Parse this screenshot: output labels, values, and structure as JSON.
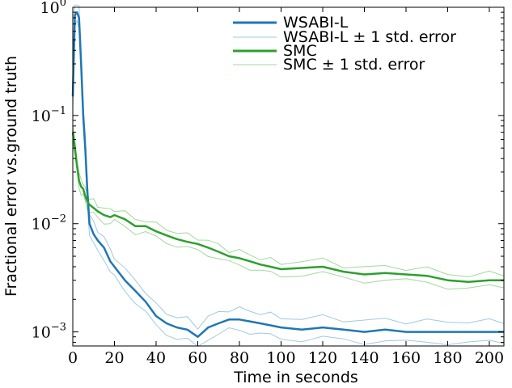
{
  "chart_data": {
    "type": "line",
    "title": "",
    "xlabel": "Time in seconds",
    "ylabel": "Fractional error vs.ground truth",
    "xlim": [
      0,
      207
    ],
    "ylim_log10": [
      -3.13,
      0
    ],
    "yscale": "log",
    "x_ticks": [
      0,
      20,
      40,
      60,
      80,
      100,
      120,
      140,
      160,
      180,
      200
    ],
    "x_tick_labels": [
      "0",
      "20",
      "40",
      "60",
      "80",
      "100",
      "120",
      "140",
      "160",
      "180",
      "200"
    ],
    "y_ticks": [
      {
        "base": "10",
        "exp": "−3",
        "value": 0.001
      },
      {
        "base": "10",
        "exp": "−2",
        "value": 0.01
      },
      {
        "base": "10",
        "exp": "−1",
        "value": 0.1
      },
      {
        "base": "10",
        "exp": "0",
        "value": 1
      }
    ],
    "legend_position": "top-right",
    "x": [
      0,
      1,
      2,
      3,
      4,
      5,
      6,
      7,
      8,
      10,
      12,
      15,
      18,
      20,
      25,
      30,
      35,
      40,
      45,
      50,
      55,
      60,
      65,
      70,
      75,
      80,
      85,
      90,
      95,
      100,
      110,
      120,
      130,
      140,
      150,
      160,
      170,
      180,
      190,
      200,
      207
    ],
    "series": [
      {
        "name": "WSABI-L",
        "legend": "WSABI-L",
        "band_legend": "WSABI-L ± 1 std. error",
        "color": "#1f77b4",
        "band_color": "#9ecae1",
        "band_factor": 1.25,
        "values": [
          0.15,
          0.85,
          0.9,
          0.8,
          0.3,
          0.1,
          0.05,
          0.02,
          0.01,
          0.008,
          0.007,
          0.006,
          0.0045,
          0.004,
          0.003,
          0.0024,
          0.0019,
          0.0014,
          0.0012,
          0.0011,
          0.00105,
          0.0009,
          0.0011,
          0.0012,
          0.0013,
          0.0013,
          0.00125,
          0.0012,
          0.00115,
          0.0011,
          0.00105,
          0.0011,
          0.00105,
          0.001,
          0.00105,
          0.001,
          0.001,
          0.001,
          0.001,
          0.001,
          0.001
        ]
      },
      {
        "name": "SMC",
        "legend": "SMC",
        "band_legend": "SMC ± 1 std. error",
        "color": "#2ca02c",
        "band_color": "#a1d99b",
        "band_factor": 1.15,
        "values": [
          0.07,
          0.05,
          0.035,
          0.025,
          0.022,
          0.021,
          0.018,
          0.016,
          0.015,
          0.014,
          0.013,
          0.012,
          0.0115,
          0.012,
          0.011,
          0.0095,
          0.0095,
          0.0085,
          0.0078,
          0.0072,
          0.0068,
          0.0065,
          0.006,
          0.0055,
          0.005,
          0.0048,
          0.0045,
          0.0042,
          0.004,
          0.0038,
          0.0039,
          0.004,
          0.0036,
          0.0034,
          0.0035,
          0.0034,
          0.0033,
          0.003,
          0.0029,
          0.003,
          0.003
        ]
      }
    ]
  }
}
